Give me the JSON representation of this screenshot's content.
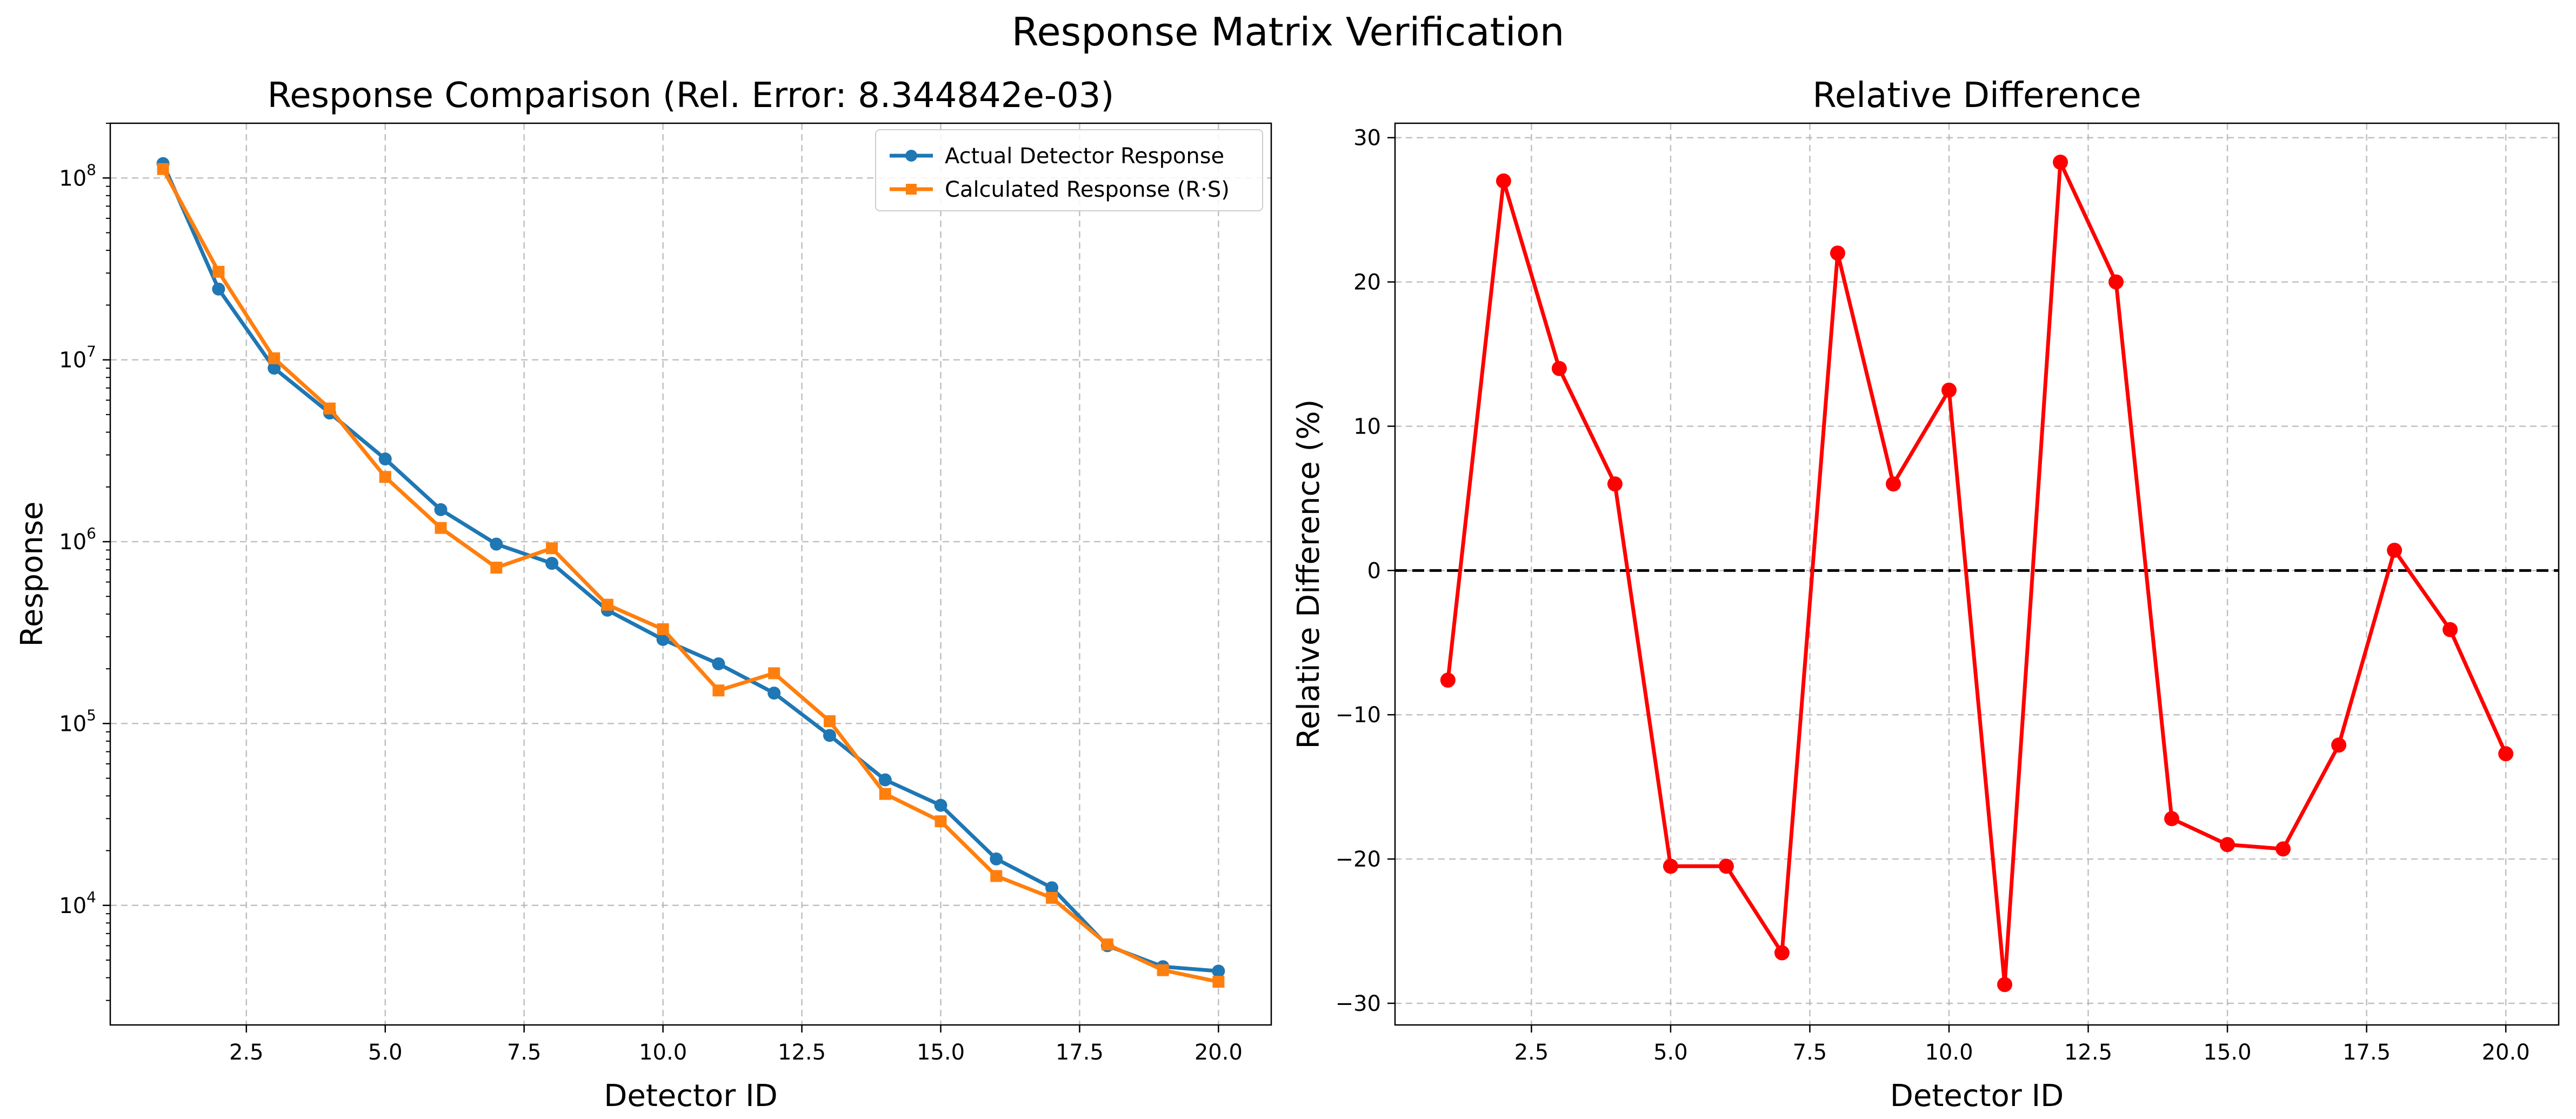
{
  "figure_title": "Response Matrix Verification",
  "chart_data": [
    {
      "type": "line",
      "title": "Response Comparison (Rel. Error: 8.344842e-03)",
      "xlabel": "Detector ID",
      "ylabel": "Response",
      "yscale": "log",
      "xlim": [
        0.05,
        20.95
      ],
      "ylim": [
        2200,
        200000000
      ],
      "x": [
        1,
        2,
        3,
        4,
        5,
        6,
        7,
        8,
        9,
        10,
        11,
        12,
        13,
        14,
        15,
        16,
        17,
        18,
        19,
        20
      ],
      "xticks": [
        2.5,
        5.0,
        7.5,
        10.0,
        12.5,
        15.0,
        17.5,
        20.0
      ],
      "xtick_labels": [
        "2.5",
        "5.0",
        "7.5",
        "10.0",
        "12.5",
        "15.0",
        "17.5",
        "20.0"
      ],
      "yticks": [
        10000,
        100000,
        1000000,
        10000000,
        100000000
      ],
      "ytick_base": "10",
      "ytick_exponents": [
        "4",
        "5",
        "6",
        "7",
        "8"
      ],
      "grid": true,
      "legend_position": "top-right",
      "series": [
        {
          "name": "Actual Detector Response",
          "color": "#1f77b4",
          "marker": "circle",
          "values": [
            120000000,
            24500000,
            9000000,
            5100000,
            2850000,
            1500000,
            970000,
            760000,
            420000,
            290000,
            213000,
            147000,
            86000,
            49000,
            35500,
            18000,
            12500,
            6000,
            4600,
            4350
          ]
        },
        {
          "name": "Calculated Response (R·S)",
          "color": "#ff7f0e",
          "marker": "square",
          "values": [
            112000000,
            30500000,
            10200000,
            5400000,
            2270000,
            1190000,
            720000,
            920000,
            450000,
            330000,
            152000,
            189000,
            103000,
            41000,
            29000,
            14500,
            11000,
            6100,
            4400,
            3800
          ]
        }
      ]
    },
    {
      "type": "line",
      "title": "Relative Difference",
      "xlabel": "Detector ID",
      "ylabel": "Relative Difference (%)",
      "xlim": [
        0.05,
        20.95
      ],
      "ylim": [
        -31.5,
        31.0
      ],
      "x": [
        1,
        2,
        3,
        4,
        5,
        6,
        7,
        8,
        9,
        10,
        11,
        12,
        13,
        14,
        15,
        16,
        17,
        18,
        19,
        20
      ],
      "xticks": [
        2.5,
        5.0,
        7.5,
        10.0,
        12.5,
        15.0,
        17.5,
        20.0
      ],
      "xtick_labels": [
        "2.5",
        "5.0",
        "7.5",
        "10.0",
        "12.5",
        "15.0",
        "17.5",
        "20.0"
      ],
      "yticks": [
        -30,
        -20,
        -10,
        0,
        10,
        20,
        30
      ],
      "ytick_labels": [
        "−30",
        "−20",
        "−10",
        "0",
        "10",
        "20",
        "30"
      ],
      "grid": true,
      "reference_line": {
        "y": 0,
        "style": "dashed",
        "color": "#000000"
      },
      "series": [
        {
          "color": "#ff0000",
          "marker": "circle",
          "values": [
            -7.6,
            27.0,
            14.0,
            6.0,
            -20.5,
            -20.5,
            -26.5,
            22.0,
            6.0,
            12.5,
            -28.7,
            28.3,
            20.0,
            -17.2,
            -19.0,
            -19.3,
            -12.1,
            1.4,
            -4.1,
            -12.7
          ]
        }
      ]
    }
  ]
}
